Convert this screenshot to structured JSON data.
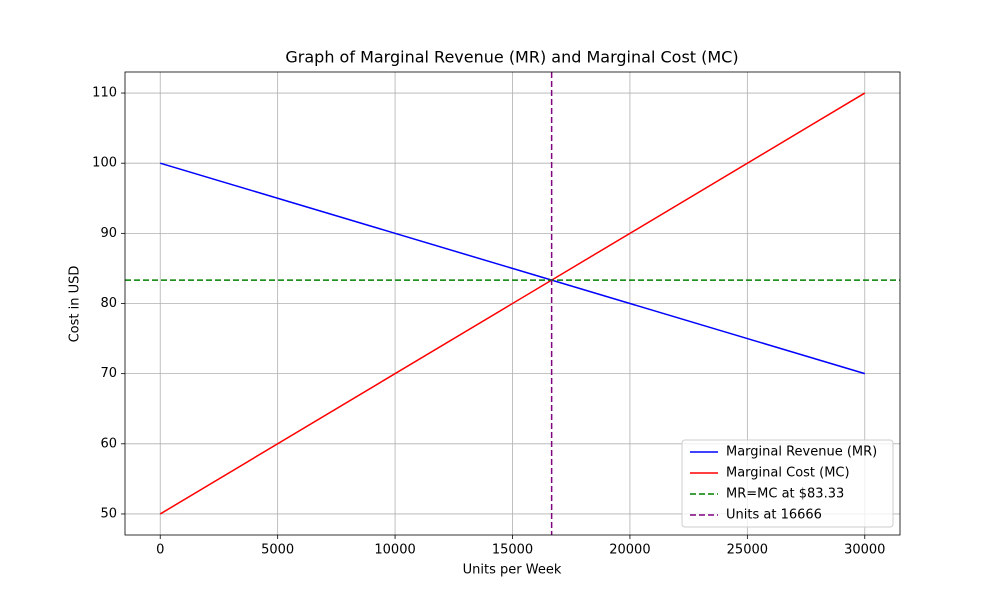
{
  "chart_data": {
    "type": "line",
    "title": "Graph of Marginal Revenue (MR) and Marginal Cost (MC)",
    "x_label": "Units per Week",
    "y_label": "Cost in USD",
    "x": [
      0,
      30000
    ],
    "series": [
      {
        "name": "Marginal Revenue (MR)",
        "color": "#0000ff",
        "values": [
          100,
          70
        ]
      },
      {
        "name": "Marginal Cost (MC)",
        "color": "#ff0000",
        "values": [
          50,
          110
        ]
      }
    ],
    "hlines": [
      {
        "name": "MR=MC at $83.33",
        "color": "#008000",
        "value": 83.33,
        "style": "dashed"
      }
    ],
    "vlines": [
      {
        "name": "Units at 16666",
        "color": "#800080",
        "value": 16666,
        "style": "dashed"
      }
    ],
    "xlim": [
      -1500,
      31500
    ],
    "ylim": [
      47,
      113
    ],
    "xticks": [
      0,
      5000,
      10000,
      15000,
      20000,
      25000,
      30000
    ],
    "yticks": [
      50,
      60,
      70,
      80,
      90,
      100,
      110
    ],
    "grid": true,
    "legend": "lower right"
  }
}
